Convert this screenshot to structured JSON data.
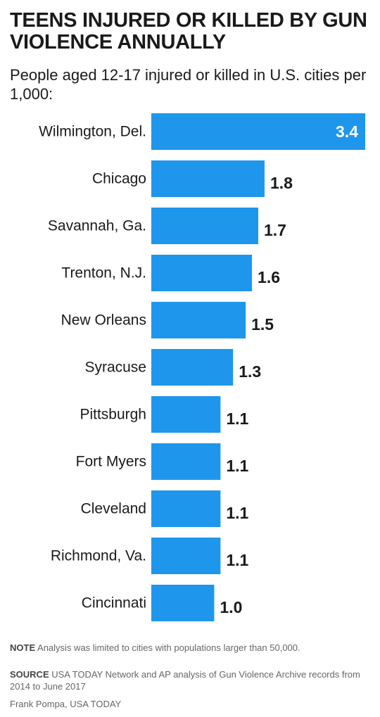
{
  "header": {
    "title": "TEENS INJURED OR KILLED BY GUN VIOLENCE ANNUALLY",
    "subtitle": "People aged 12-17 injured or killed in U.S. cities per 1,000:"
  },
  "footer": {
    "note_label": "NOTE",
    "note_text": "Analysis was limited to cities with populations larger than 50,000.",
    "source_label": "SOURCE",
    "source_text": "USA TODAY Network and AP analysis of Gun Violence Archive records from 2014 to June 2017",
    "credit": "Frank Pompa, USA TODAY"
  },
  "colors": {
    "bar": "#1e96ec",
    "inside_label": "#ffffff",
    "outside_label": "#1a1a1a"
  },
  "chart_data": {
    "type": "bar",
    "orientation": "horizontal",
    "title": "TEENS INJURED OR KILLED BY GUN VIOLENCE ANNUALLY",
    "subtitle": "People aged 12-17 injured or killed in U.S. cities per 1,000:",
    "categories": [
      "Wilmington, Del.",
      "Chicago",
      "Savannah, Ga.",
      "Trenton, N.J.",
      "New Orleans",
      "Syracuse",
      "Pittsburgh",
      "Fort Myers",
      "Cleveland",
      "Richmond, Va.",
      "Cincinnati"
    ],
    "values": [
      3.4,
      1.8,
      1.7,
      1.6,
      1.5,
      1.3,
      1.1,
      1.1,
      1.1,
      1.1,
      1.0
    ],
    "value_labels": [
      "3.4",
      "1.8",
      "1.7",
      "1.6",
      "1.5",
      "1.3",
      "1.1",
      "1.1",
      "1.1",
      "1.1",
      "1.0"
    ],
    "xlim": [
      0,
      3.4
    ],
    "grid": false,
    "legend": "none"
  }
}
